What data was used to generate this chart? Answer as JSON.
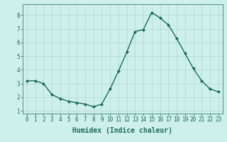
{
  "x": [
    0,
    1,
    2,
    3,
    4,
    5,
    6,
    7,
    8,
    9,
    10,
    11,
    12,
    13,
    14,
    15,
    16,
    17,
    18,
    19,
    20,
    21,
    22,
    23
  ],
  "y": [
    3.2,
    3.2,
    3.0,
    2.2,
    1.9,
    1.7,
    1.6,
    1.5,
    1.3,
    1.5,
    2.6,
    3.9,
    5.3,
    6.8,
    6.95,
    8.2,
    7.8,
    7.3,
    6.3,
    5.2,
    4.1,
    3.2,
    2.6,
    2.4
  ],
  "line_color": "#1a6b5a",
  "marker": "D",
  "marker_size": 2.0,
  "xlabel": "Humidex (Indice chaleur)",
  "xlabel_fontsize": 7.0,
  "xlabel_color": "#1a6b5a",
  "xlabel_weight": "bold",
  "ylabel_ticks": [
    1,
    2,
    3,
    4,
    5,
    6,
    7,
    8
  ],
  "xlim": [
    -0.5,
    23.5
  ],
  "ylim": [
    0.8,
    8.8
  ],
  "background_color": "#cef0ea",
  "plot_bg_color": "#cef0ea",
  "grid_color": "#aed8d0",
  "tick_color": "#1a6b5a",
  "tick_fontsize": 5.5,
  "xtick_labels": [
    "0",
    "1",
    "2",
    "3",
    "4",
    "5",
    "6",
    "7",
    "8",
    "9",
    "10",
    "11",
    "12",
    "13",
    "14",
    "15",
    "16",
    "17",
    "18",
    "19",
    "20",
    "21",
    "22",
    "23"
  ]
}
